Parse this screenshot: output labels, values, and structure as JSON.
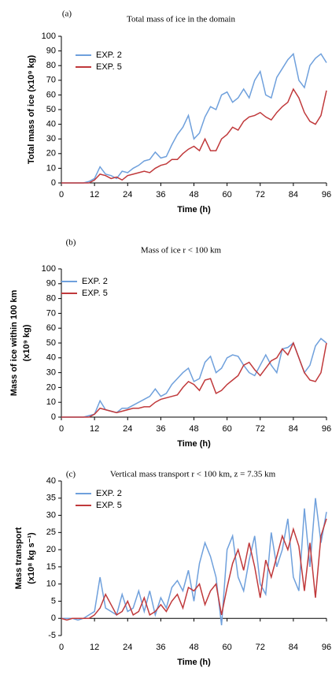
{
  "chart_data": [
    {
      "type": "line",
      "panel_label": "(a)",
      "title": "Total mass of ice in the domain",
      "ylabel": [
        "Total mass of ice (x10⁹ kg)"
      ],
      "xlabel": "Time (h)",
      "x": [
        0,
        2,
        4,
        6,
        8,
        10,
        12,
        14,
        16,
        18,
        20,
        22,
        24,
        26,
        28,
        30,
        32,
        34,
        36,
        38,
        40,
        42,
        44,
        46,
        48,
        50,
        52,
        54,
        56,
        58,
        60,
        62,
        64,
        66,
        68,
        70,
        72,
        74,
        76,
        78,
        80,
        82,
        84,
        86,
        88,
        90,
        92,
        94,
        96
      ],
      "series": [
        {
          "name": "EXP. 2",
          "color": "#6fa0dc",
          "values": [
            0,
            0,
            0,
            0,
            0,
            1,
            3,
            11,
            6,
            5,
            3,
            8,
            7,
            10,
            12,
            15,
            16,
            21,
            17,
            18,
            26,
            33,
            38,
            46,
            30,
            34,
            45,
            52,
            50,
            60,
            62,
            55,
            58,
            64,
            58,
            70,
            76,
            60,
            58,
            72,
            78,
            84,
            88,
            70,
            65,
            80,
            85,
            88,
            82
          ]
        },
        {
          "name": "EXP. 5",
          "color": "#c0393b",
          "values": [
            0,
            0,
            0,
            0,
            0,
            0,
            2,
            6,
            5,
            3,
            4,
            2,
            5,
            6,
            7,
            8,
            7,
            10,
            12,
            13,
            16,
            16,
            20,
            23,
            25,
            22,
            30,
            22,
            22,
            30,
            33,
            38,
            36,
            42,
            45,
            46,
            48,
            45,
            43,
            48,
            52,
            55,
            64,
            58,
            48,
            42,
            40,
            46,
            63
          ]
        }
      ],
      "xlim": [
        0,
        96
      ],
      "xticks": [
        0,
        12,
        24,
        36,
        48,
        60,
        72,
        84,
        96
      ],
      "ylim": [
        0,
        100
      ],
      "yticks": [
        0,
        10,
        20,
        30,
        40,
        50,
        60,
        70,
        80,
        90,
        100
      ],
      "legend": "upper left"
    },
    {
      "type": "line",
      "panel_label": "(b)",
      "title": "Mass of ice r < 100 km",
      "ylabel": [
        "Mass of ice within 100 km",
        "(x10⁹ kg)"
      ],
      "xlabel": "Time (h)",
      "x": [
        0,
        2,
        4,
        6,
        8,
        10,
        12,
        14,
        16,
        18,
        20,
        22,
        24,
        26,
        28,
        30,
        32,
        34,
        36,
        38,
        40,
        42,
        44,
        46,
        48,
        50,
        52,
        54,
        56,
        58,
        60,
        62,
        64,
        66,
        68,
        70,
        72,
        74,
        76,
        78,
        80,
        82,
        84,
        86,
        88,
        90,
        92,
        94,
        96
      ],
      "series": [
        {
          "name": "EXP. 2",
          "color": "#6fa0dc",
          "values": [
            0,
            0,
            0,
            0,
            0,
            1,
            2,
            11,
            5,
            4,
            3,
            6,
            6,
            8,
            10,
            12,
            14,
            19,
            14,
            16,
            22,
            26,
            30,
            33,
            24,
            26,
            37,
            41,
            30,
            33,
            40,
            42,
            41,
            35,
            30,
            28,
            35,
            42,
            35,
            30,
            46,
            47,
            50,
            40,
            30,
            35,
            48,
            53,
            50
          ]
        },
        {
          "name": "EXP. 5",
          "color": "#c0393b",
          "values": [
            0,
            0,
            0,
            0,
            0,
            0,
            2,
            6,
            5,
            4,
            3,
            4,
            5,
            6,
            6,
            7,
            7,
            10,
            12,
            13,
            14,
            15,
            20,
            24,
            22,
            18,
            25,
            26,
            16,
            18,
            22,
            25,
            28,
            35,
            37,
            32,
            28,
            33,
            38,
            40,
            46,
            42,
            50,
            40,
            30,
            25,
            24,
            30,
            50
          ]
        }
      ],
      "xlim": [
        0,
        96
      ],
      "xticks": [
        0,
        12,
        24,
        36,
        48,
        60,
        72,
        84,
        96
      ],
      "ylim": [
        0,
        100
      ],
      "yticks": [
        0,
        10,
        20,
        30,
        40,
        50,
        60,
        70,
        80,
        90,
        100
      ],
      "legend": "upper left"
    },
    {
      "type": "line",
      "panel_label": "(c)",
      "title": "Vertical mass transport r < 100 km, z = 7.35 km",
      "ylabel": [
        "Mass transport",
        "(x10⁸ kg s⁻¹)"
      ],
      "xlabel": "Time (h)",
      "x": [
        0,
        2,
        4,
        6,
        8,
        10,
        12,
        14,
        16,
        18,
        20,
        22,
        24,
        26,
        28,
        30,
        32,
        34,
        36,
        38,
        40,
        42,
        44,
        46,
        48,
        50,
        52,
        54,
        56,
        58,
        60,
        62,
        64,
        66,
        68,
        70,
        72,
        74,
        76,
        78,
        80,
        82,
        84,
        86,
        88,
        90,
        92,
        94,
        96
      ],
      "series": [
        {
          "name": "EXP. 2",
          "color": "#6fa0dc",
          "values": [
            0,
            0,
            0,
            -0.5,
            0,
            1,
            2,
            12,
            3,
            2,
            1,
            7,
            2,
            3,
            8,
            2,
            8,
            1,
            6,
            3,
            9,
            11,
            8,
            14,
            5,
            16,
            22,
            18,
            12,
            -2,
            20,
            24,
            12,
            8,
            17,
            24,
            10,
            7,
            25,
            15,
            20,
            29,
            12,
            8,
            32,
            15,
            35,
            22,
            31
          ]
        },
        {
          "name": "EXP. 5",
          "color": "#c0393b",
          "values": [
            0,
            -0.5,
            0,
            0,
            0,
            0,
            1,
            3,
            7,
            4,
            1,
            2,
            5,
            1,
            2,
            6,
            1,
            2,
            4,
            2,
            5,
            7,
            3,
            9,
            8,
            10,
            4,
            8,
            10,
            1,
            9,
            16,
            20,
            14,
            22,
            15,
            6,
            17,
            12,
            18,
            24,
            20,
            26,
            21,
            8,
            22,
            6,
            24,
            29
          ]
        }
      ],
      "xlim": [
        0,
        96
      ],
      "xticks": [
        0,
        12,
        24,
        36,
        48,
        60,
        72,
        84,
        96
      ],
      "ylim": [
        -5,
        40
      ],
      "yticks": [
        -5,
        0,
        5,
        10,
        15,
        20,
        25,
        30,
        35,
        40
      ],
      "legend": "upper left"
    }
  ]
}
